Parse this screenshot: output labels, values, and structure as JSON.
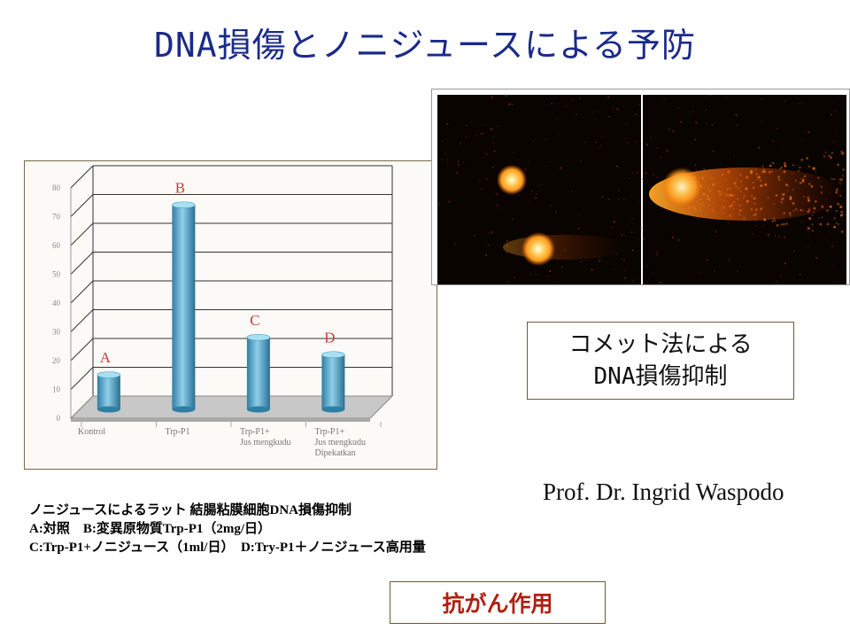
{
  "title": "DNA損傷とノニジュースによる予防",
  "chart_data": {
    "type": "bar",
    "categories": [
      "Kontrol",
      "Trp-P1",
      "Trp-P1+\nJus mengkudu",
      "Trp-P1+\nJus mengkudu\nDipekatkan"
    ],
    "values": [
      12,
      71,
      25,
      19
    ],
    "bar_letters": [
      "A",
      "B",
      "C",
      "D"
    ],
    "ylim": [
      0,
      80
    ],
    "yticks": [
      "0",
      "10",
      "20",
      "30",
      "40",
      "50",
      "60",
      "70",
      "80"
    ],
    "grid": true,
    "colors": {
      "bar": "#5aa8c8",
      "letter": "#c04040",
      "floor": "#c8c8c8"
    }
  },
  "comet_panel": {
    "description_icon": "comet-assay-image",
    "colors": {
      "background": "#0a0400",
      "glow": "#ff9a20",
      "core": "#ffffe0"
    }
  },
  "method_label": {
    "line1": "コメット法による",
    "line2": "DNA損傷抑制"
  },
  "author": "Prof. Dr. Ingrid Waspodo",
  "caption": {
    "line1": "ノニジュースによるラット 結腸粘膜細胞DNA損傷抑制",
    "line2": "A:対照　B:変異原物質Trp-P1（2mg/日）",
    "line3": "C:Trp-P1+ノニジュース（1ml/日）　D:Try-P1＋ノニジュース高用量"
  },
  "effect_label": "抗がん作用",
  "colors": {
    "title": "#1a2a8a",
    "effect": "#b02010"
  }
}
